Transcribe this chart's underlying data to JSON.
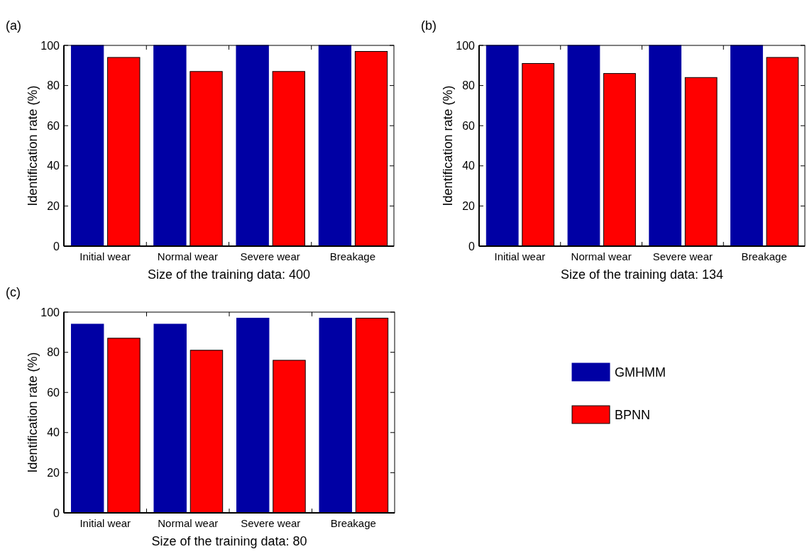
{
  "chart_data": [
    {
      "type": "bar",
      "title": "(a)",
      "xlabel": "Size of the training data: 400",
      "ylabel": "Identification rate (%)",
      "categories": [
        "Initial wear",
        "Normal wear",
        "Severe wear",
        "Breakage"
      ],
      "ylim": [
        0,
        100
      ],
      "yticks": [
        0,
        20,
        40,
        60,
        80,
        100
      ],
      "legend": false,
      "series": [
        {
          "color": "#0000a4",
          "values": [
            100,
            100,
            100,
            100
          ]
        },
        {
          "color": "#ff0000",
          "values": [
            94,
            87,
            87,
            97
          ]
        }
      ]
    },
    {
      "type": "bar",
      "title": "(b)",
      "xlabel": "Size of the training data: 134",
      "ylabel": "Identification rate (%)",
      "categories": [
        "Initial wear",
        "Normal wear",
        "Severe wear",
        "Breakage"
      ],
      "ylim": [
        0,
        100
      ],
      "yticks": [
        0,
        20,
        40,
        60,
        80,
        100
      ],
      "legend": false,
      "series": [
        {
          "color": "#0000a4",
          "values": [
            100,
            100,
            100,
            100
          ]
        },
        {
          "color": "#ff0000",
          "values": [
            91,
            86,
            84,
            94
          ]
        }
      ]
    },
    {
      "type": "bar",
      "title": "(c)",
      "xlabel": "Size of the training data: 80",
      "ylabel": "Identification rate (%)",
      "categories": [
        "Initial wear",
        "Normal wear",
        "Severe wear",
        "Breakage"
      ],
      "ylim": [
        0,
        100
      ],
      "yticks": [
        0,
        20,
        40,
        60,
        80,
        100
      ],
      "legend": "right",
      "series": [
        {
          "name": "GMHMM",
          "color": "#0000a4",
          "values": [
            94,
            94,
            97,
            97
          ]
        },
        {
          "name": "BPNN",
          "color": "#ff0000",
          "values": [
            87,
            81,
            76,
            97
          ]
        }
      ]
    }
  ]
}
